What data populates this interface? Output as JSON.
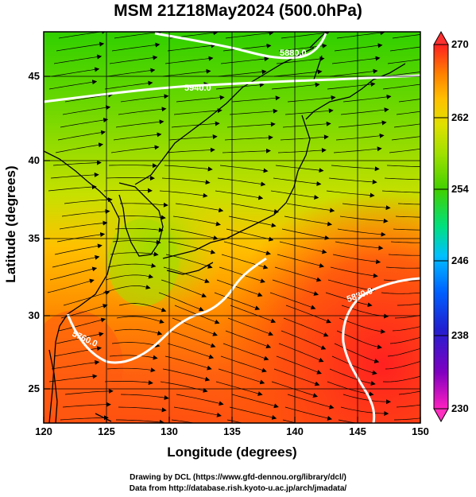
{
  "title": "MSM 21Z18May2024 (500.0hPa)",
  "x_axis": {
    "label": "Longitude (degrees)",
    "ticks": [
      "120",
      "125",
      "130",
      "135",
      "140",
      "145",
      "150"
    ]
  },
  "y_axis": {
    "label": "Latitude  (degrees)",
    "ticks": [
      "25",
      "30",
      "35",
      "40",
      "45"
    ]
  },
  "colorbar": {
    "ticks": [
      "270",
      "262",
      "254",
      "246",
      "238",
      "230"
    ],
    "min": 230,
    "max": 270,
    "colors": [
      "#ff20c0",
      "#8000c0",
      "#2020d0",
      "#0060ff",
      "#00c0ff",
      "#00e080",
      "#40d000",
      "#a0e000",
      "#e0e000",
      "#ffc000",
      "#ff8000",
      "#ff4000",
      "#ff2020"
    ]
  },
  "contour_labels": [
    "5880.0",
    "5940.0",
    "5760.0",
    "5880.0"
  ],
  "map": {
    "lon_range": [
      120,
      150
    ],
    "lat_range": [
      22.5,
      47.5
    ],
    "contour_color": "#ffffff"
  },
  "credits": {
    "line1": "Drawing by DCL (https://www.gfd-dennou.org/library/dcl/)",
    "line2": "Data from http://database.rish.kyoto-u.ac.jp/arch/jmadata/"
  }
}
